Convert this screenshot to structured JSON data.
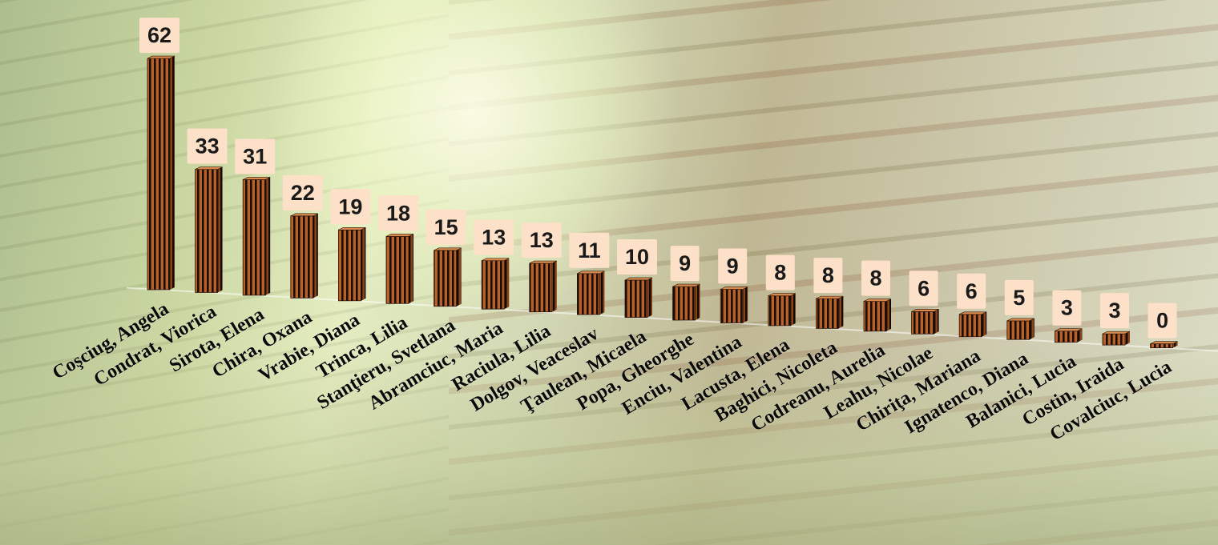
{
  "chart_data": {
    "type": "bar",
    "title": "",
    "xlabel": "",
    "ylabel": "",
    "ylim": [
      0,
      62
    ],
    "grid": false,
    "categories": [
      "Coşciug, Angela",
      "Condrat, Viorica",
      "Sirota, Elena",
      "Chira, Oxana",
      "Vrabie, Diana",
      "Trinca, Lilia",
      "Stanţieru, Svetlana",
      "Abramciuc, Maria",
      "Raciula, Lilia",
      "Dolgov, Veaceslav",
      "Ţaulean, Micaela",
      "Popa, Gheorghe",
      "Enciu, Valentina",
      "Lacusta, Elena",
      "Baghici, Nicoleta",
      "Codreanu, Aurelia",
      "Leahu, Nicolae",
      "Chiriţa, Mariana",
      "Ignatenco, Diana",
      "Balanici, Lucia",
      "Costin, Iraida",
      "Covalciuc, Lucia"
    ],
    "values": [
      62,
      33,
      31,
      22,
      19,
      18,
      15,
      13,
      13,
      11,
      10,
      9,
      9,
      8,
      8,
      8,
      6,
      6,
      5,
      3,
      3,
      0
    ],
    "colors": {
      "bar_face": "#b8612a",
      "bar_stripe": "#1a0f08",
      "bar_top": "#d98a4e",
      "label_box": "#fde0c8"
    }
  }
}
